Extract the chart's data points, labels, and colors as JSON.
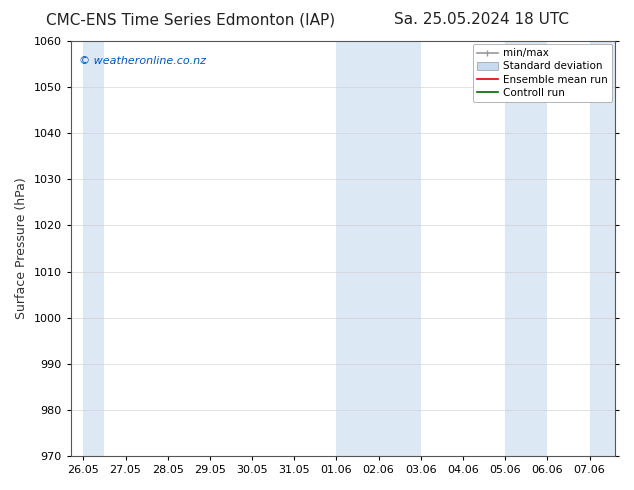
{
  "title_left": "CMC-ENS Time Series Edmonton (IAP)",
  "title_right": "Sa. 25.05.2024 18 UTC",
  "ylabel": "Surface Pressure (hPa)",
  "ylim": [
    970,
    1060
  ],
  "yticks": [
    970,
    980,
    990,
    1000,
    1010,
    1020,
    1030,
    1040,
    1050,
    1060
  ],
  "watermark": "© weatheronline.co.nz",
  "watermark_color": "#0055bb",
  "background_color": "#ffffff",
  "plot_bg_color": "#ffffff",
  "shaded_band_color": "#dce9f5",
  "xtick_labels": [
    "26.05",
    "27.05",
    "28.05",
    "29.05",
    "30.05",
    "31.05",
    "01.06",
    "02.06",
    "03.06",
    "04.06",
    "05.06",
    "06.06",
    "07.06"
  ],
  "shade_ranges": [
    [
      0,
      0.5
    ],
    [
      6,
      8
    ],
    [
      10,
      11
    ],
    [
      12,
      12.6
    ]
  ],
  "legend_entries": [
    {
      "label": "min/max",
      "color": "#aaaaaa",
      "type": "errorbar"
    },
    {
      "label": "Standard deviation",
      "color": "#c8daf0",
      "type": "band"
    },
    {
      "label": "Ensemble mean run",
      "color": "#ff0000",
      "type": "line"
    },
    {
      "label": "Controll run",
      "color": "#008800",
      "type": "line"
    }
  ],
  "title_fontsize": 11,
  "tick_label_fontsize": 8,
  "ylabel_fontsize": 9,
  "legend_fontsize": 7.5,
  "watermark_fontsize": 8
}
